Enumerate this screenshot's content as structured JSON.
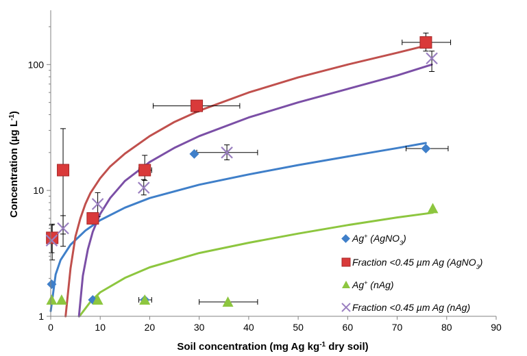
{
  "chart_data": {
    "type": "scatter",
    "x_axis": {
      "label_parts": [
        "Soil concentration (mg Ag kg",
        "-1",
        " dry soil)"
      ],
      "range": [
        0,
        90
      ],
      "ticks": [
        0,
        10,
        20,
        30,
        40,
        50,
        60,
        70,
        80,
        90
      ],
      "tick_labels": [
        "0",
        "10",
        "20",
        "30",
        "40",
        "50",
        "60",
        "70",
        "80",
        "90"
      ]
    },
    "y_axis": {
      "label_parts": [
        "Concentration (µg L",
        "-1",
        ")"
      ],
      "scale": "log",
      "range": [
        1,
        270
      ],
      "ticks": [
        1,
        10,
        100
      ],
      "tick_labels": [
        "1",
        "10",
        "100"
      ]
    },
    "grid": false,
    "legend_position": "bottom-right",
    "series": [
      {
        "key": "ag_agno3",
        "name_parts": [
          "Ag",
          "+",
          " (AgNO",
          "3",
          ")"
        ],
        "marker": "diamond",
        "color": "#3f7fc9",
        "line_color": "#3f7fc9",
        "points": [
          {
            "x": 0.2,
            "y": 1.8
          },
          {
            "x": 8.5,
            "y": 1.35
          },
          {
            "x": 19.0,
            "y": 1.35
          },
          {
            "x": 29.0,
            "y": 19.5
          },
          {
            "x": 75.8,
            "y": 21.5,
            "xerr": [
              71.8,
              80.3
            ]
          }
        ],
        "fit": [
          {
            "x": 0,
            "y": 1.1
          },
          {
            "x": 1,
            "y": 2.15
          },
          {
            "x": 2,
            "y": 2.8
          },
          {
            "x": 4,
            "y": 3.7
          },
          {
            "x": 7,
            "y": 4.8
          },
          {
            "x": 10,
            "y": 5.8
          },
          {
            "x": 15,
            "y": 7.3
          },
          {
            "x": 20,
            "y": 8.7
          },
          {
            "x": 30,
            "y": 11.1
          },
          {
            "x": 40,
            "y": 13.4
          },
          {
            "x": 50,
            "y": 15.9
          },
          {
            "x": 60,
            "y": 18.6
          },
          {
            "x": 70,
            "y": 21.7
          },
          {
            "x": 75.8,
            "y": 23.8
          }
        ]
      },
      {
        "key": "frac_agno3",
        "name_parts": [
          "Fraction <0.45 µm Ag (AgNO",
          "3",
          ")"
        ],
        "marker": "square",
        "color": "#d93a3a",
        "line_color": "#c0504d",
        "points": [
          {
            "x": 0.3,
            "y": 4.2,
            "yerr": [
              2.8,
              5.4
            ]
          },
          {
            "x": 2.5,
            "y": 14.5,
            "yerr": [
              4.5,
              31.0
            ]
          },
          {
            "x": 8.5,
            "y": 6.0
          },
          {
            "x": 19.0,
            "y": 14.5,
            "yerr": [
              12.0,
              19.0
            ],
            "xerr": [
              17.8,
              20.4
            ]
          },
          {
            "x": 29.5,
            "y": 47.0,
            "yerr": [
              42.0,
              50.0
            ],
            "xerr": [
              20.7,
              38.2
            ]
          },
          {
            "x": 75.8,
            "y": 150.0,
            "yerr": [
              128.0,
              178.0
            ],
            "xerr": [
              71.0,
              80.8
            ]
          }
        ]
      },
      {
        "key": "ag_nag",
        "name_parts": [
          "Ag",
          "+",
          " (nAg)"
        ],
        "marker": "triangle",
        "color": "#8dc63f",
        "line_color": "#8dc63f",
        "points": [
          {
            "x": 0.2,
            "y": 1.35
          },
          {
            "x": 2.2,
            "y": 1.35
          },
          {
            "x": 9.5,
            "y": 1.35
          },
          {
            "x": 19.0,
            "y": 1.35,
            "xerr": [
              17.8,
              20.4
            ]
          },
          {
            "x": 35.8,
            "y": 1.3,
            "xerr": [
              30.0,
              41.8
            ]
          },
          {
            "x": 77.2,
            "y": 7.2
          }
        ],
        "fit": [
          {
            "x": 5.8,
            "y": 1.0
          },
          {
            "x": 8,
            "y": 1.3
          },
          {
            "x": 10,
            "y": 1.55
          },
          {
            "x": 15,
            "y": 2.02
          },
          {
            "x": 20,
            "y": 2.45
          },
          {
            "x": 30,
            "y": 3.18
          },
          {
            "x": 40,
            "y": 3.84
          },
          {
            "x": 50,
            "y": 4.54
          },
          {
            "x": 60,
            "y": 5.3
          },
          {
            "x": 70,
            "y": 6.1
          },
          {
            "x": 77.2,
            "y": 6.65
          }
        ]
      },
      {
        "key": "frac_nag",
        "name_parts": [
          "Fraction <0.45 µm Ag (nAg)"
        ],
        "marker": "x",
        "color": "#9a7fc0",
        "line_color": "#7b4fa6",
        "points": [
          {
            "x": 0.2,
            "y": 4.0,
            "yerr": [
              3.2,
              5.3
            ]
          },
          {
            "x": 2.5,
            "y": 5.0,
            "yerr": [
              3.6,
              6.3
            ]
          },
          {
            "x": 9.5,
            "y": 7.8,
            "yerr": [
              6.2,
              9.6
            ]
          },
          {
            "x": 18.8,
            "y": 10.5,
            "yerr": [
              9.2,
              12.2
            ]
          },
          {
            "x": 35.6,
            "y": 20.0,
            "yerr": [
              17.5,
              23.0
            ],
            "xerr": [
              29.5,
              41.8
            ]
          },
          {
            "x": 77.0,
            "y": 112.0,
            "yerr": [
              88.0,
              128.0
            ]
          }
        ]
      }
    ],
    "fit_lines": [
      {
        "key": "fit_frac_agno3",
        "color": "#c0504d",
        "points": [
          {
            "x": 3.0,
            "y": 1.0
          },
          {
            "x": 4,
            "y": 2.4
          },
          {
            "x": 5,
            "y": 4.3
          },
          {
            "x": 6,
            "y": 6.0
          },
          {
            "x": 7,
            "y": 7.8
          },
          {
            "x": 8,
            "y": 9.5
          },
          {
            "x": 10,
            "y": 12.5
          },
          {
            "x": 12,
            "y": 15.5
          },
          {
            "x": 15,
            "y": 19.6
          },
          {
            "x": 20,
            "y": 27.0
          },
          {
            "x": 25,
            "y": 35.0
          },
          {
            "x": 30,
            "y": 43.0
          },
          {
            "x": 40,
            "y": 60.0
          },
          {
            "x": 50,
            "y": 79.0
          },
          {
            "x": 60,
            "y": 100.0
          },
          {
            "x": 70,
            "y": 124.0
          },
          {
            "x": 76,
            "y": 142.0
          }
        ]
      },
      {
        "key": "fit_frac_nag",
        "color": "#7b4fa6",
        "points": [
          {
            "x": 5.7,
            "y": 1.0
          },
          {
            "x": 6.5,
            "y": 2.1
          },
          {
            "x": 7.5,
            "y": 3.4
          },
          {
            "x": 8.5,
            "y": 4.7
          },
          {
            "x": 10,
            "y": 6.5
          },
          {
            "x": 12,
            "y": 8.7
          },
          {
            "x": 15,
            "y": 11.9
          },
          {
            "x": 20,
            "y": 16.8
          },
          {
            "x": 25,
            "y": 21.8
          },
          {
            "x": 30,
            "y": 27.0
          },
          {
            "x": 40,
            "y": 38.0
          },
          {
            "x": 50,
            "y": 50.0
          },
          {
            "x": 60,
            "y": 64.0
          },
          {
            "x": 70,
            "y": 82.0
          },
          {
            "x": 77,
            "y": 100.0
          }
        ]
      }
    ]
  }
}
